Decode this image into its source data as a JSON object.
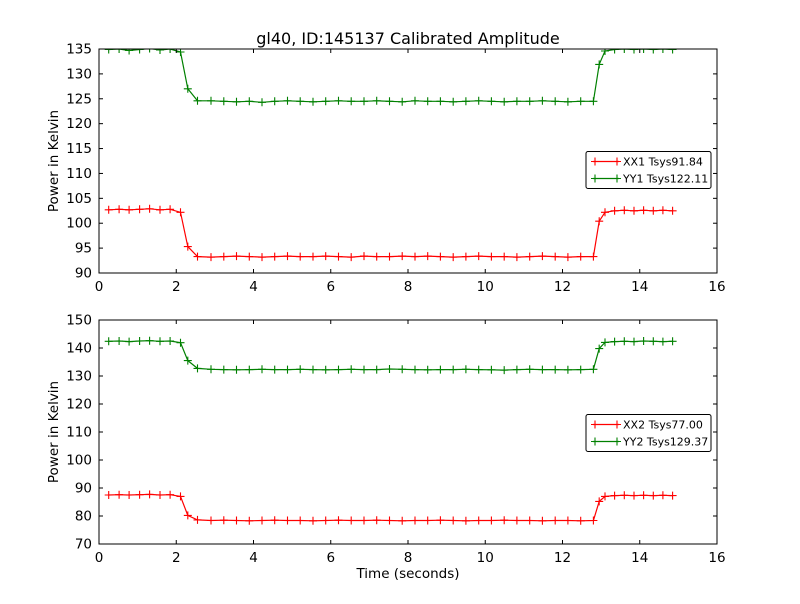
{
  "title": "gl40, ID:145137 Calibrated Amplitude",
  "xlabel": "Time (seconds)",
  "ylabel": "Power in Kelvin",
  "colors": {
    "background": "#ffffff",
    "axis": "#000000",
    "xx_series": "#ff0000",
    "yy_series": "#008000"
  },
  "chart_data": [
    {
      "type": "line",
      "subplot": "top",
      "ylabel": "Power in Kelvin",
      "xlim": [
        0,
        16
      ],
      "ylim": [
        90,
        135
      ],
      "xticks": [
        0,
        2,
        4,
        6,
        8,
        10,
        12,
        14,
        16
      ],
      "yticks": [
        90,
        95,
        100,
        105,
        110,
        115,
        120,
        125,
        130,
        135
      ],
      "grid": false,
      "legend_position": "center-right",
      "legend_offset_y": 9,
      "marker": "plus",
      "x": [
        0.25,
        0.52,
        0.78,
        1.05,
        1.31,
        1.58,
        1.84,
        2.11,
        2.3,
        2.55,
        2.9,
        3.23,
        3.56,
        3.89,
        4.22,
        4.55,
        4.88,
        5.21,
        5.54,
        5.87,
        6.2,
        6.53,
        6.86,
        7.19,
        7.52,
        7.85,
        8.18,
        8.51,
        8.84,
        9.17,
        9.5,
        9.83,
        10.16,
        10.49,
        10.82,
        11.15,
        11.48,
        11.81,
        12.14,
        12.47,
        12.8,
        12.95,
        13.1,
        13.35,
        13.6,
        13.85,
        14.1,
        14.35,
        14.6,
        14.85
      ],
      "series": [
        {
          "name": "XX1 Tsys91.84",
          "color": "#ff0000",
          "values": [
            102.7,
            102.8,
            102.7,
            102.8,
            102.9,
            102.7,
            102.8,
            102.2,
            95.3,
            93.3,
            93.2,
            93.3,
            93.4,
            93.3,
            93.2,
            93.3,
            93.4,
            93.3,
            93.3,
            93.4,
            93.3,
            93.2,
            93.4,
            93.3,
            93.3,
            93.4,
            93.3,
            93.4,
            93.3,
            93.2,
            93.3,
            93.4,
            93.3,
            93.3,
            93.2,
            93.3,
            93.4,
            93.3,
            93.2,
            93.3,
            93.3,
            100.4,
            102.2,
            102.5,
            102.6,
            102.5,
            102.6,
            102.5,
            102.6,
            102.5
          ]
        },
        {
          "name": "YY1 Tsys122.11",
          "color": "#008000",
          "values": [
            134.9,
            135.0,
            134.7,
            134.9,
            135.1,
            134.8,
            135.0,
            134.4,
            127.0,
            124.6,
            124.6,
            124.5,
            124.4,
            124.5,
            124.3,
            124.5,
            124.6,
            124.5,
            124.4,
            124.5,
            124.6,
            124.5,
            124.5,
            124.6,
            124.5,
            124.4,
            124.6,
            124.5,
            124.5,
            124.4,
            124.5,
            124.6,
            124.5,
            124.4,
            124.5,
            124.5,
            124.6,
            124.5,
            124.4,
            124.5,
            124.5,
            131.9,
            134.6,
            134.9,
            135.0,
            134.9,
            135.0,
            134.9,
            135.0,
            134.9
          ]
        }
      ]
    },
    {
      "type": "line",
      "subplot": "bottom",
      "ylabel": "Power in Kelvin",
      "xlim": [
        0,
        16
      ],
      "ylim": [
        70,
        150
      ],
      "xticks": [
        0,
        2,
        4,
        6,
        8,
        10,
        12,
        14,
        16
      ],
      "yticks": [
        70,
        80,
        90,
        100,
        110,
        120,
        130,
        140,
        150
      ],
      "grid": false,
      "legend_position": "center-right",
      "legend_offset_y": 1,
      "marker": "plus",
      "x": [
        0.25,
        0.52,
        0.78,
        1.05,
        1.31,
        1.58,
        1.84,
        2.11,
        2.3,
        2.55,
        2.9,
        3.23,
        3.56,
        3.89,
        4.22,
        4.55,
        4.88,
        5.21,
        5.54,
        5.87,
        6.2,
        6.53,
        6.86,
        7.19,
        7.52,
        7.85,
        8.18,
        8.51,
        8.84,
        9.17,
        9.5,
        9.83,
        10.16,
        10.49,
        10.82,
        11.15,
        11.48,
        11.81,
        12.14,
        12.47,
        12.8,
        12.95,
        13.1,
        13.35,
        13.6,
        13.85,
        14.1,
        14.35,
        14.6,
        14.85
      ],
      "series": [
        {
          "name": "XX2 Tsys77.00",
          "color": "#ff0000",
          "values": [
            87.5,
            87.6,
            87.5,
            87.6,
            87.7,
            87.5,
            87.6,
            87.0,
            80.2,
            78.6,
            78.4,
            78.5,
            78.4,
            78.3,
            78.4,
            78.5,
            78.4,
            78.4,
            78.3,
            78.4,
            78.5,
            78.4,
            78.4,
            78.5,
            78.4,
            78.3,
            78.4,
            78.4,
            78.5,
            78.4,
            78.3,
            78.4,
            78.4,
            78.5,
            78.4,
            78.4,
            78.3,
            78.4,
            78.4,
            78.3,
            78.4,
            85.2,
            87.0,
            87.3,
            87.4,
            87.3,
            87.4,
            87.3,
            87.4,
            87.3
          ]
        },
        {
          "name": "YY2 Tsys129.37",
          "color": "#008000",
          "values": [
            142.4,
            142.5,
            142.3,
            142.5,
            142.6,
            142.4,
            142.5,
            141.9,
            135.5,
            132.7,
            132.4,
            132.3,
            132.2,
            132.3,
            132.4,
            132.3,
            132.3,
            132.4,
            132.3,
            132.2,
            132.3,
            132.4,
            132.3,
            132.3,
            132.5,
            132.4,
            132.3,
            132.2,
            132.3,
            132.3,
            132.4,
            132.3,
            132.2,
            132.1,
            132.3,
            132.4,
            132.3,
            132.3,
            132.2,
            132.3,
            132.4,
            139.8,
            142.0,
            142.3,
            142.4,
            142.3,
            142.5,
            142.4,
            142.3,
            142.4
          ]
        }
      ]
    }
  ]
}
